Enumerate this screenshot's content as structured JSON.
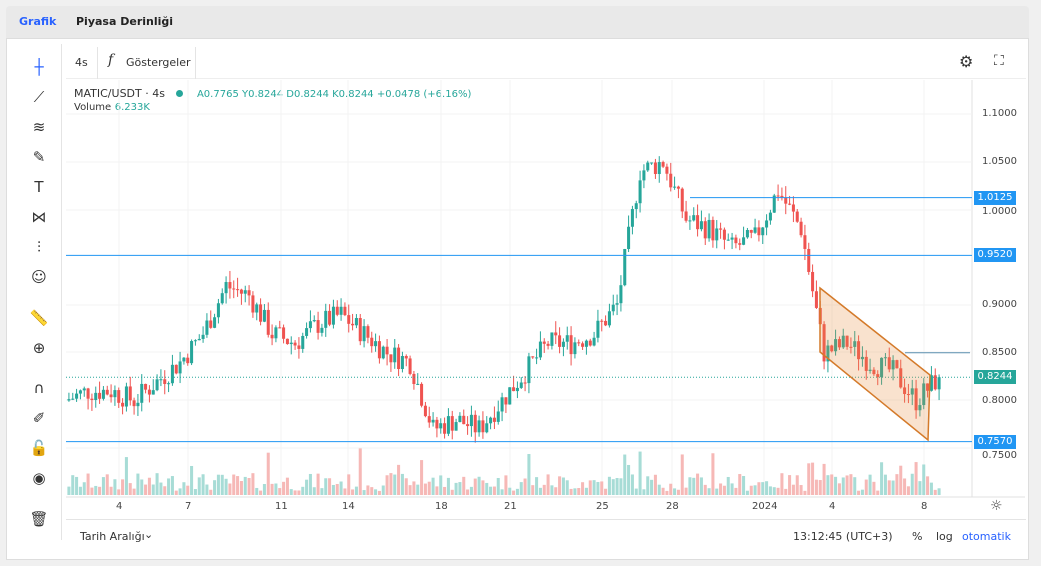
{
  "tabs": [
    {
      "label": "Grafik",
      "active": true
    },
    {
      "label": "Piyasa Derinliği",
      "active": false
    }
  ],
  "toolbar": {
    "interval": "4s",
    "indicators": "Göstergeler"
  },
  "legend": {
    "symbol": "MATIC/USDT · 4s",
    "ohlc": "A0.7765 Y0.8244 D0.8244 K0.8244 +0.0478 (+6.16%)",
    "volume_label": "Volume",
    "volume_value": "6.233K"
  },
  "left_tools": [
    "crosshair-icon",
    "trend-line-icon",
    "fib-icon",
    "brush-icon",
    "text-icon",
    "pattern-icon",
    "prediction-icon",
    "emoji-icon",
    "ruler-icon",
    "zoom-in-icon",
    "magnet-icon",
    "lock-drawing-icon",
    "unlock-icon",
    "eye-icon",
    "trash-icon"
  ],
  "price_axis": [
    "1.1000",
    "1.0500",
    "1.0000",
    "0.9000",
    "0.8500",
    "0.8000",
    "0.7500"
  ],
  "price_tags": [
    {
      "label": "1.0125",
      "value": 1.0125,
      "color": "#2196f3"
    },
    {
      "label": "0.9520",
      "value": 0.952,
      "color": "#2196f3"
    },
    {
      "label": "0.8244",
      "value": 0.8244,
      "color": "#26a69a"
    },
    {
      "label": "0.7570",
      "value": 0.757,
      "color": "#2196f3"
    }
  ],
  "time_axis": [
    "4",
    "7",
    "11",
    "14",
    "18",
    "21",
    "25",
    "28",
    "2024",
    "4",
    "8"
  ],
  "bottom": {
    "range": "Tarih Aralığı",
    "clock": "13:12:45 (UTC+3)",
    "percent": "%",
    "log": "log",
    "auto": "otomatik"
  },
  "colors": {
    "up": "#26a69a",
    "down": "#ef5350",
    "accent": "#2962ff",
    "channel": "#d47a2a"
  },
  "chart_data": {
    "type": "candlestick",
    "interval": "4s",
    "ylim": [
      0.745,
      1.11
    ],
    "daily_closes": [
      0.8,
      0.81,
      0.81,
      0.8,
      0.82,
      0.84,
      0.87,
      0.92,
      0.91,
      0.87,
      0.86,
      0.88,
      0.89,
      0.87,
      0.85,
      0.84,
      0.77,
      0.78,
      0.77,
      0.8,
      0.83,
      0.86,
      0.86,
      0.87,
      0.9,
      1.04,
      1.05,
      0.99,
      0.98,
      0.96,
      0.97,
      1.02,
      0.98,
      0.85,
      0.86,
      0.84,
      0.83,
      0.8,
      0.8244
    ],
    "horizontal_lines": [
      1.0125,
      0.952,
      0.85,
      0.757
    ],
    "last_price": 0.8244
  }
}
